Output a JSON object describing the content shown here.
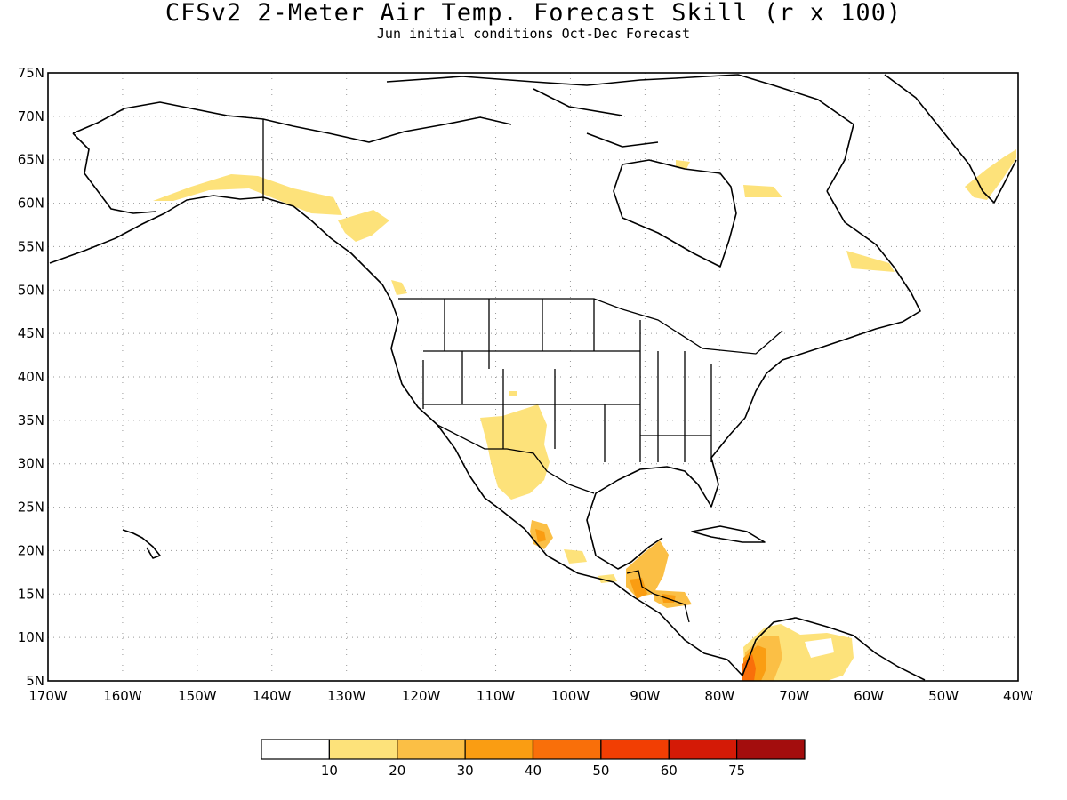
{
  "title": "CFSv2 2-Meter Air Temp. Forecast Skill (r x 100)",
  "subtitle": "Jun initial conditions  Oct-Dec Forecast",
  "map": {
    "lat_range": [
      5,
      75
    ],
    "lon_range": [
      -170,
      -40
    ],
    "lat_labels": [
      "75N",
      "70N",
      "65N",
      "60N",
      "55N",
      "50N",
      "45N",
      "40N",
      "35N",
      "30N",
      "25N",
      "20N",
      "15N",
      "10N",
      "5N"
    ],
    "lon_labels": [
      "170W",
      "160W",
      "150W",
      "140W",
      "130W",
      "120W",
      "110W",
      "100W",
      "90W",
      "80W",
      "70W",
      "60W",
      "50W",
      "40W"
    ],
    "grid": "dotted"
  },
  "colorbar": {
    "levels": [
      "10",
      "20",
      "30",
      "40",
      "50",
      "60",
      "75"
    ],
    "colors": [
      "#ffffff",
      "#fde27a",
      "#fbbf45",
      "#fa9d12",
      "#f96f0a",
      "#f23e03",
      "#d41a06",
      "#a30d0d"
    ]
  }
}
